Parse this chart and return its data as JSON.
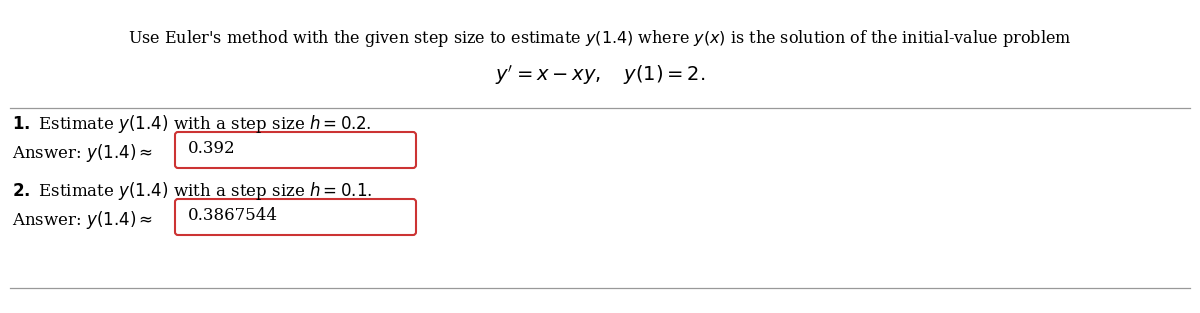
{
  "title_text": "Use Euler's method with the given step size to estimate $y(1.4)$ where $y(x)$ is the solution of the initial-value problem",
  "equation_text": "$y^{\\prime} = x - xy, \\quad y(1) = 2.$",
  "q1_label": "$\\mathbf{1.}$ Estimate $y(1.4)$ with a step size $h = 0.2$.",
  "q1_answer_prefix": "Answer: $y(1.4) \\approx$",
  "q1_answer_value": "0.392",
  "q2_label": "$\\mathbf{2.}$ Estimate $y(1.4)$ with a step size $h = 0.1$.",
  "q2_answer_prefix": "Answer: $y(1.4) \\approx$",
  "q2_answer_value": "0.3867544",
  "box_facecolor": "#ffffff",
  "box_edgecolor": "#cc3333",
  "separator_color": "#999999",
  "bg_color": "#ffffff",
  "text_color": "#000000",
  "title_fontsize": 11.5,
  "body_fontsize": 12.0,
  "eq_fontsize": 14.0,
  "answer_fontsize": 12.0
}
